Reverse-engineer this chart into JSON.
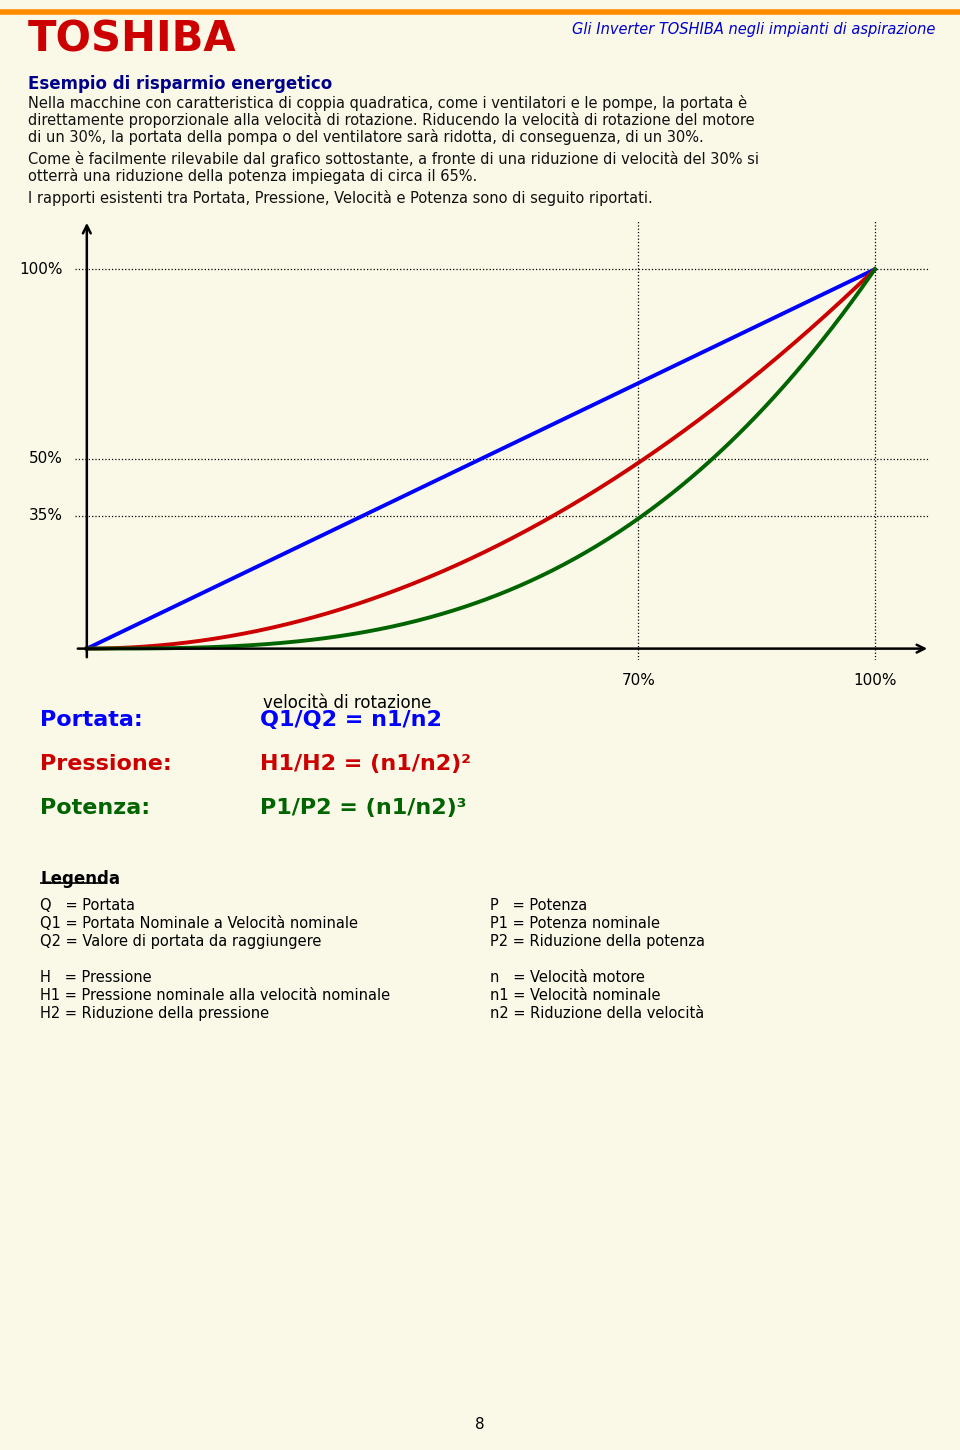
{
  "bg_color": "#FAF9E8",
  "header_line_color": "#FF8C00",
  "toshiba_color": "#CC0000",
  "title_right_color": "#0000CC",
  "title_right_text": "Gli Inverter TOSHIBA negli impianti di aspirazione",
  "section_title": "Esempio di risparmio energetico",
  "section_title_color": "#00008B",
  "para1_line1": "Nella macchine con caratteristica di coppia quadratica, come i ventilatori e le pompe, la portata è",
  "para1_line2": "direttamente proporzionale alla velocità di rotazione. Riducendo la velocità di rotazione del motore",
  "para1_line3": "di un 30%, la portata della pompa o del ventilatore sarà ridotta, di conseguenza, di un 30%.",
  "para2_line1": "Come è facilmente rilevabile dal grafico sottostante, a fronte di una riduzione di velocità del 30% si",
  "para2_line2": "otterrà una riduzione della potenza impiegata di circa il 65%.",
  "para3": "I rapporti esistenti tra Portata, Pressione, Velocità e Potenza sono di seguito riportati.",
  "chart_bg": "#FAF9E8",
  "blue_color": "#0000FF",
  "red_color": "#CC0000",
  "green_color": "#006400",
  "ytick_labels": [
    "35%",
    "50%",
    "100%"
  ],
  "ytick_values": [
    0.35,
    0.5,
    1.0
  ],
  "xtick_labels": [
    "70%",
    "100%"
  ],
  "xtick_values": [
    0.7,
    1.0
  ],
  "xlabel": "velocità di rotazione",
  "portata_label": "Portata:",
  "portata_formula": "Q1/Q2 = n1/n2",
  "pressione_label": "Pressione:",
  "pressione_formula": "H1/H2 = (n1/n2)²",
  "potenza_label": "Potenza:",
  "potenza_formula": "P1/P2 = (n1/n2)³",
  "legenda_title": "Legenda",
  "leg_left": [
    "Q   = Portata",
    "Q1 = Portata Nominale a Velocità nominale",
    "Q2 = Valore di portata da raggiungere",
    "",
    "H   = Pressione",
    "H1 = Pressione nominale alla velocità nominale",
    "H2 = Riduzione della pressione"
  ],
  "leg_right": [
    "P   = Potenza",
    "P1 = Potenza nominale",
    "P2 = Riduzione della potenza",
    "",
    "n   = Velocità motore",
    "n1 = Velocità nominale",
    "n2 = Riduzione della velocità"
  ],
  "page_num": "8"
}
